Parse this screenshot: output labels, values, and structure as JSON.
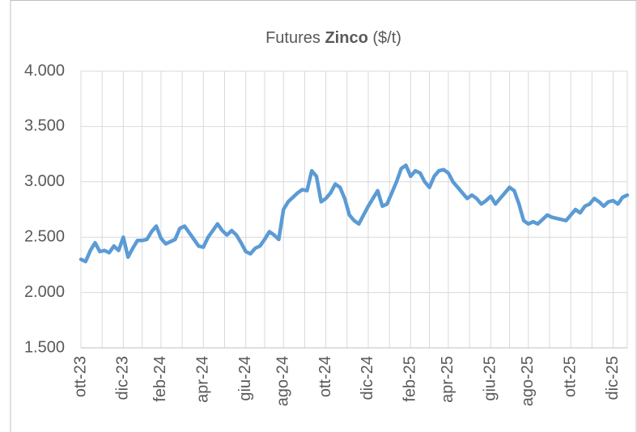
{
  "chart_data": {
    "type": "line",
    "title": {
      "prefix": "Futures",
      "bold": "Zinco",
      "suffix": "($/t)"
    },
    "categories": [
      "ott-23",
      null,
      null,
      null,
      null,
      null,
      null,
      null,
      null,
      "dic-23",
      null,
      null,
      null,
      null,
      null,
      null,
      null,
      "feb-24",
      null,
      null,
      null,
      null,
      null,
      null,
      null,
      null,
      "apr-24",
      null,
      null,
      null,
      null,
      null,
      null,
      null,
      null,
      "giu-24",
      null,
      null,
      null,
      null,
      null,
      null,
      null,
      "ago-24",
      null,
      null,
      null,
      null,
      null,
      null,
      null,
      null,
      "ott-24",
      null,
      null,
      null,
      null,
      null,
      null,
      null,
      null,
      "dic-24",
      null,
      null,
      null,
      null,
      null,
      null,
      null,
      null,
      "feb-25",
      null,
      null,
      null,
      null,
      null,
      null,
      null,
      "apr-25",
      null,
      null,
      null,
      null,
      null,
      null,
      null,
      null,
      "giu-25",
      null,
      null,
      null,
      null,
      null,
      null,
      null,
      "ago-25",
      null,
      null,
      null,
      null,
      null,
      null,
      null,
      null,
      "ott-25",
      null,
      null,
      null,
      null,
      null,
      null,
      null,
      null,
      "dic-25",
      null,
      null,
      null
    ],
    "values": [
      2300,
      2280,
      2380,
      2450,
      2370,
      2380,
      2360,
      2420,
      2380,
      2500,
      2320,
      2400,
      2470,
      2470,
      2480,
      2550,
      2600,
      2490,
      2440,
      2460,
      2480,
      2580,
      2600,
      2540,
      2480,
      2420,
      2410,
      2500,
      2560,
      2620,
      2560,
      2520,
      2560,
      2520,
      2450,
      2370,
      2350,
      2400,
      2420,
      2480,
      2550,
      2520,
      2480,
      2750,
      2820,
      2860,
      2900,
      2930,
      2920,
      3100,
      3050,
      2820,
      2850,
      2900,
      2980,
      2950,
      2850,
      2700,
      2650,
      2620,
      2700,
      2780,
      2850,
      2920,
      2780,
      2800,
      2900,
      3000,
      3120,
      3150,
      3050,
      3100,
      3080,
      3000,
      2950,
      3050,
      3100,
      3110,
      3080,
      3000,
      2950,
      2900,
      2850,
      2880,
      2850,
      2800,
      2830,
      2870,
      2800,
      2850,
      2900,
      2950,
      2920,
      2800,
      2650,
      2620,
      2640,
      2620,
      2660,
      2700,
      2680,
      2670,
      2660,
      2650,
      2700,
      2750,
      2720,
      2780,
      2800,
      2850,
      2820,
      2780,
      2820,
      2830,
      2800,
      2860,
      2880
    ],
    "color": "#5b9bd5",
    "ylim": [
      1500,
      4000
    ],
    "yticks": [
      {
        "value": 1500,
        "label": "1.500"
      },
      {
        "value": 2000,
        "label": "2.000"
      },
      {
        "value": 2500,
        "label": "2.500"
      },
      {
        "value": 3000,
        "label": "3.000"
      },
      {
        "value": 3500,
        "label": "3.500"
      },
      {
        "value": 4000,
        "label": "4.000"
      }
    ],
    "grid": true
  }
}
